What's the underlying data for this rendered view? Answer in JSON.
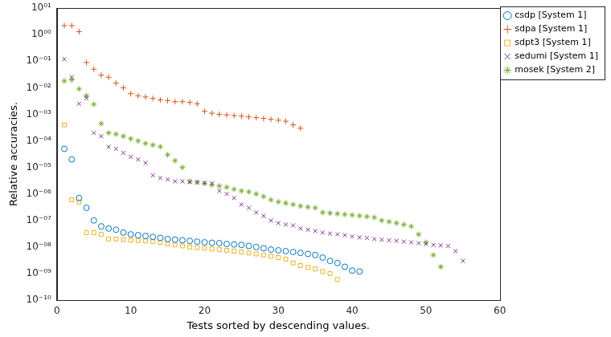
{
  "chart_data": {
    "type": "scatter",
    "x_label": "Tests sorted by descending values.",
    "y_label": "Relative accuracies.",
    "log": "y",
    "grid": false,
    "legend": "right",
    "xlim": [
      0,
      60
    ],
    "xticks": [
      0,
      10,
      20,
      30,
      40,
      50,
      60
    ],
    "ylim": [
      1e-10,
      10
    ],
    "yticks": [
      {
        "value": 10,
        "label": "10⁰¹"
      },
      {
        "value": 1,
        "label": "10⁰⁰"
      },
      {
        "value": 0.1,
        "label": "10⁻⁰¹"
      },
      {
        "value": 0.01,
        "label": "10⁻⁰²"
      },
      {
        "value": 0.001,
        "label": "10⁻⁰³"
      },
      {
        "value": 0.0001,
        "label": "10⁻⁰⁴"
      },
      {
        "value": 1e-05,
        "label": "10⁻⁰⁵"
      },
      {
        "value": 1e-06,
        "label": "10⁻⁰⁶"
      },
      {
        "value": 1e-07,
        "label": "10⁻⁰⁷"
      },
      {
        "value": 1e-08,
        "label": "10⁻⁰⁸"
      },
      {
        "value": 1e-09,
        "label": "10⁻⁰⁹"
      },
      {
        "value": 1e-10,
        "label": "10⁻¹⁰"
      }
    ],
    "series": [
      {
        "name": "csdp [System 1]",
        "color": "#0072bd",
        "marker": "circle",
        "x": [
          1,
          2,
          3,
          4,
          5,
          6,
          7,
          8,
          9,
          10,
          11,
          12,
          13,
          14,
          15,
          16,
          17,
          18,
          19,
          20,
          21,
          22,
          23,
          24,
          25,
          26,
          27,
          28,
          29,
          30,
          31,
          32,
          33,
          34,
          35,
          36,
          37,
          38,
          39,
          40,
          41
        ],
        "values": [
          5e-05,
          2e-05,
          7e-07,
          3e-07,
          1e-07,
          6e-08,
          5e-08,
          4.5e-08,
          3.5e-08,
          3e-08,
          2.8e-08,
          2.6e-08,
          2.4e-08,
          2.2e-08,
          2e-08,
          1.9e-08,
          1.8e-08,
          1.7e-08,
          1.6e-08,
          1.5e-08,
          1.45e-08,
          1.4e-08,
          1.3e-08,
          1.25e-08,
          1.2e-08,
          1.1e-08,
          1e-08,
          9e-09,
          8e-09,
          7.5e-09,
          7e-09,
          6.5e-09,
          6e-09,
          5.5e-09,
          5e-09,
          4e-09,
          3e-09,
          2.5e-09,
          1.8e-09,
          1.3e-09,
          1.2e-09
        ]
      },
      {
        "name": "sdpa [System 1]",
        "color": "#d95319",
        "marker": "plus",
        "x": [
          1,
          2,
          3,
          4,
          5,
          6,
          7,
          8,
          9,
          10,
          11,
          12,
          13,
          14,
          15,
          16,
          17,
          18,
          19,
          20,
          21,
          22,
          23,
          24,
          25,
          26,
          27,
          28,
          29,
          30,
          31,
          32,
          33
        ],
        "values": [
          2.2,
          2.2,
          1.3,
          0.09,
          0.05,
          0.03,
          0.025,
          0.015,
          0.01,
          0.006,
          0.005,
          0.0045,
          0.004,
          0.0035,
          0.0033,
          0.003,
          0.003,
          0.0028,
          0.0025,
          0.0013,
          0.0011,
          0.001,
          0.00095,
          0.0009,
          0.00085,
          0.0008,
          0.00075,
          0.0007,
          0.00065,
          0.0006,
          0.00055,
          0.0004,
          0.0003
        ]
      },
      {
        "name": "sdpt3 [System 1]",
        "color": "#edb120",
        "marker": "square",
        "x": [
          1,
          2,
          3,
          4,
          5,
          6,
          7,
          8,
          9,
          10,
          11,
          12,
          13,
          14,
          15,
          16,
          17,
          18,
          19,
          20,
          21,
          22,
          23,
          24,
          25,
          26,
          27,
          28,
          29,
          30,
          31,
          32,
          33,
          34,
          35,
          36,
          37,
          38
        ],
        "values": [
          0.0004,
          6e-07,
          5e-07,
          3.5e-08,
          3.5e-08,
          3e-08,
          2e-08,
          2e-08,
          1.9e-08,
          1.8e-08,
          1.75e-08,
          1.7e-08,
          1.6e-08,
          1.5e-08,
          1.3e-08,
          1.2e-08,
          1.1e-08,
          1e-08,
          9.5e-09,
          9e-09,
          8.5e-09,
          8e-09,
          7.5e-09,
          7e-09,
          6.5e-09,
          6e-09,
          5.5e-09,
          5e-09,
          4.5e-09,
          4e-09,
          3.5e-09,
          2.5e-09,
          2e-09,
          1.7e-09,
          1.5e-09,
          1.2e-09,
          1e-09,
          6e-10
        ]
      },
      {
        "name": "sedumi [System 1]",
        "color": "#7e2f8e",
        "marker": "x",
        "x": [
          1,
          2,
          3,
          4,
          5,
          6,
          7,
          8,
          9,
          10,
          11,
          12,
          13,
          14,
          15,
          16,
          17,
          18,
          19,
          20,
          21,
          22,
          23,
          24,
          25,
          26,
          27,
          28,
          29,
          30,
          31,
          32,
          33,
          34,
          35,
          36,
          37,
          38,
          39,
          40,
          41,
          42,
          43,
          44,
          45,
          46,
          47,
          48,
          49,
          50,
          51,
          52,
          53,
          54,
          55
        ],
        "values": [
          0.12,
          0.025,
          0.0025,
          0.004,
          0.0002,
          0.00015,
          6e-05,
          5e-05,
          3.5e-05,
          2.5e-05,
          2e-05,
          1.5e-05,
          5e-06,
          4e-06,
          3.5e-06,
          3e-06,
          3e-06,
          2.8e-06,
          2.7e-06,
          2.6e-06,
          2.5e-06,
          1.3e-06,
          1e-06,
          7e-07,
          4e-07,
          3e-07,
          2e-07,
          1.5e-07,
          1e-07,
          8e-08,
          7e-08,
          6.5e-08,
          5e-08,
          4.5e-08,
          4e-08,
          3.5e-08,
          3.2e-08,
          3e-08,
          2.8e-08,
          2.5e-08,
          2.3e-08,
          2.2e-08,
          2e-08,
          1.9e-08,
          1.8e-08,
          1.7e-08,
          1.6e-08,
          1.5e-08,
          1.4e-08,
          1.3e-08,
          1.2e-08,
          1.15e-08,
          1.1e-08,
          7e-09,
          3e-09
        ]
      },
      {
        "name": "mosek [System 2]",
        "color": "#77ac30",
        "marker": "star",
        "x": [
          1,
          2,
          3,
          4,
          5,
          6,
          7,
          8,
          9,
          10,
          11,
          12,
          13,
          14,
          15,
          16,
          17,
          18,
          19,
          20,
          21,
          22,
          23,
          24,
          25,
          26,
          27,
          28,
          29,
          30,
          31,
          32,
          33,
          34,
          35,
          36,
          37,
          38,
          39,
          40,
          41,
          42,
          43,
          44,
          45,
          46,
          47,
          48,
          49,
          50,
          51,
          52
        ],
        "values": [
          0.018,
          0.02,
          0.009,
          0.005,
          0.0024,
          0.00045,
          0.0002,
          0.00018,
          0.00015,
          0.00012,
          0.0001,
          8e-05,
          7e-05,
          6e-05,
          3e-05,
          1.8e-05,
          1e-05,
          3e-06,
          2.8e-06,
          2.5e-06,
          2.2e-06,
          2e-06,
          1.8e-06,
          1.5e-06,
          1.3e-06,
          1.2e-06,
          1e-06,
          8e-07,
          6e-07,
          5e-07,
          4.5e-07,
          4e-07,
          3.5e-07,
          3.2e-07,
          3e-07,
          2e-07,
          1.9e-07,
          1.8e-07,
          1.7e-07,
          1.6e-07,
          1.5e-07,
          1.4e-07,
          1.3e-07,
          1e-07,
          9e-08,
          8e-08,
          7e-08,
          6e-08,
          3e-08,
          1.5e-08,
          5e-09,
          1.8e-09
        ]
      }
    ]
  }
}
